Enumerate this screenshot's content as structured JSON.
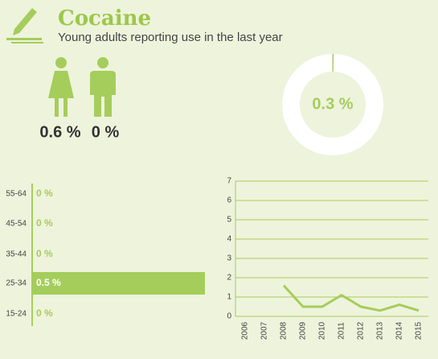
{
  "header": {
    "title": "Cocaine",
    "subtitle": "Young adults reporting use in the last year"
  },
  "chart_data": [
    {
      "type": "icon-stat",
      "values": [
        0.6,
        0
      ],
      "value_labels": [
        "0.6 %",
        "0 %"
      ]
    },
    {
      "type": "pie",
      "values": [
        0.3
      ],
      "value_labels": [
        "0.3 %"
      ],
      "color": "#a5cd5b"
    },
    {
      "type": "bar",
      "orientation": "horizontal",
      "categories": [
        "55-64",
        "45-54",
        "35-44",
        "25-34",
        "15-24"
      ],
      "values": [
        0,
        0,
        0,
        0.5,
        0
      ],
      "value_labels": [
        "0 %",
        "0 %",
        "0 %",
        "0.5 %",
        "0 %"
      ],
      "color": "#a5cd5b"
    },
    {
      "type": "line",
      "x": [
        2006,
        2007,
        2008,
        2009,
        2010,
        2011,
        2012,
        2013,
        2014,
        2015
      ],
      "values": [
        null,
        null,
        1.6,
        0.5,
        0.5,
        1.1,
        0.5,
        0.3,
        0.6,
        0.3
      ],
      "ylim": [
        0,
        7
      ],
      "yticks": [
        0,
        1,
        2,
        3,
        4,
        5,
        6,
        7
      ],
      "grid": true,
      "color": "#a5cd5b"
    }
  ]
}
